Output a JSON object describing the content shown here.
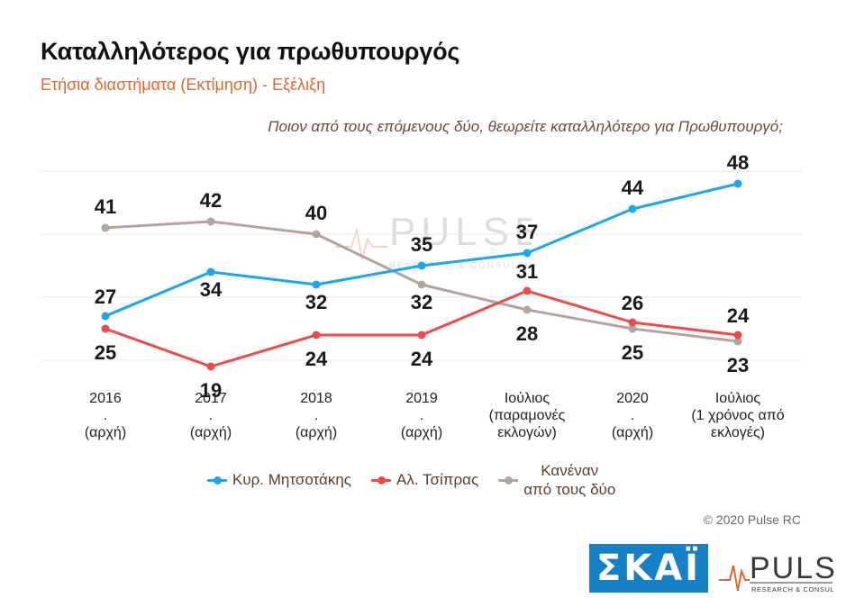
{
  "header": {
    "title": "Καταλληλότερος για πρωθυπουργός",
    "subtitle": "Ετήσια διαστήματα  (Εκτίμηση) - Εξέλιξη",
    "question": "Ποιον από τους επόμενους δύο, θεωρείτε καταλληλότερο για Πρωθυπουργό;"
  },
  "chart_data": {
    "type": "line",
    "categories": [
      [
        "2016",
        ".",
        "(αρχή)"
      ],
      [
        "2017",
        ".",
        "(αρχή)"
      ],
      [
        "2018",
        ".",
        "(αρχή)"
      ],
      [
        "2019",
        ".",
        "(αρχή)"
      ],
      [
        "Ιούλιος",
        "(παραμονές",
        "εκλογών)"
      ],
      [
        "2020",
        ".",
        "(αρχή)"
      ],
      [
        "Ιούλιος",
        "(1 χρόνος από",
        "εκλογές)"
      ]
    ],
    "series": [
      {
        "name": "Κυρ. Μητσοτάκης",
        "color": "#1aa7ec",
        "values": [
          27,
          34,
          32,
          35,
          37,
          44,
          48
        ]
      },
      {
        "name": "Αλ. Τσίπρας",
        "color": "#ef4a4a",
        "values": [
          25,
          19,
          24,
          24,
          31,
          26,
          24
        ]
      },
      {
        "name": "Κανέναν από τους δύο",
        "color": "#b3a59e",
        "values": [
          41,
          42,
          40,
          32,
          28,
          25,
          23
        ]
      }
    ],
    "ylim": [
      10,
      55
    ],
    "grid": true,
    "legend_position": "bottom"
  },
  "legend": {
    "item1": "Κυρ. Μητσοτάκης",
    "item2": "Αλ. Τσίπρας",
    "item3_line1": "Κανέναν",
    "item3_line2": "από τους δύο"
  },
  "copyright": "© 2020 Pulse RC",
  "logos": {
    "skai": "ΣΚΑΪ",
    "pulse": "PULSE",
    "pulse_tagline": "RESEARCH & CONSULTING"
  }
}
